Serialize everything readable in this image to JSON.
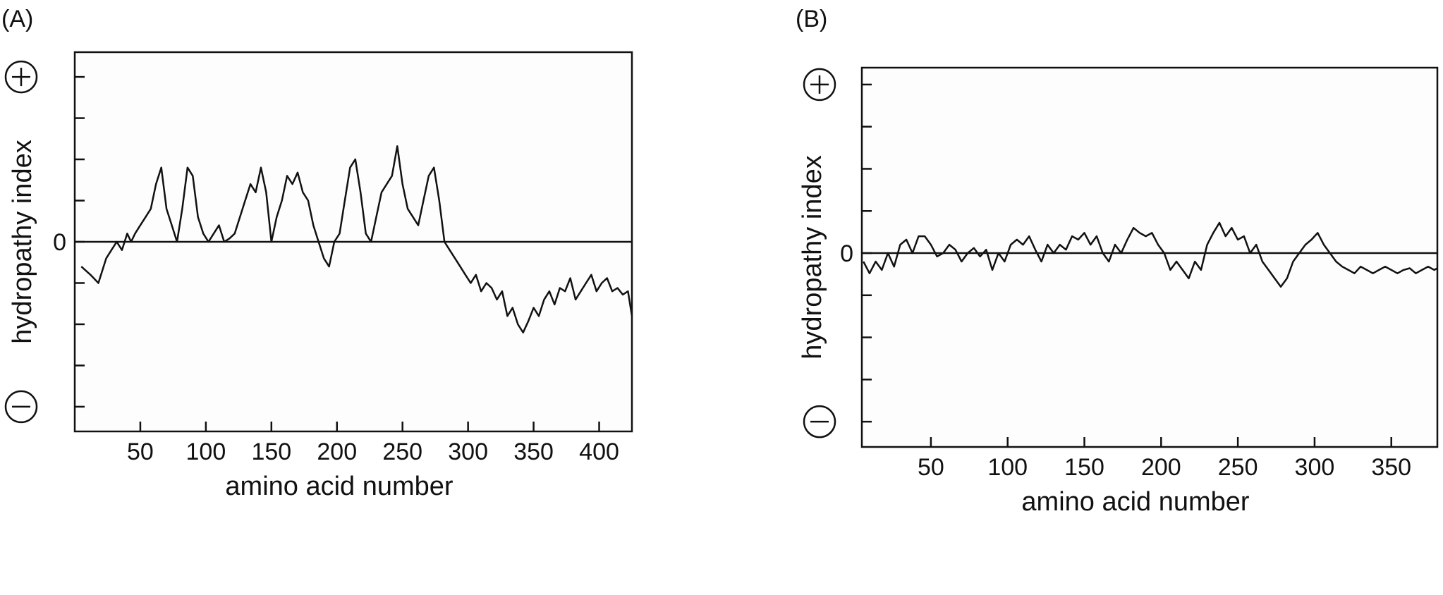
{
  "chart_data": [
    {
      "type": "line",
      "panel_label": "(A)",
      "xlabel": "amino acid number",
      "ylabel": "hydropathy index",
      "x_ticks": [
        50,
        100,
        150,
        200,
        250,
        300,
        350,
        400
      ],
      "xlim": [
        0,
        425
      ],
      "ylim": [
        -1.15,
        1.15
      ],
      "y_ticks": [
        -1.0,
        -0.75,
        -0.5,
        -0.25,
        0,
        0.25,
        0.5,
        0.75,
        1.0
      ],
      "y_tick_labels": [
        {
          "value": 0,
          "label": "0"
        }
      ],
      "y_sign_positive": "+",
      "y_sign_negative": "−",
      "grid": false,
      "series": [
        {
          "x": [
            5,
            12,
            18,
            24,
            28,
            32,
            36,
            40,
            43,
            46,
            50,
            54,
            58,
            62,
            66,
            70,
            74,
            78,
            82,
            86,
            90,
            94,
            98,
            102,
            106,
            110,
            114,
            118,
            122,
            126,
            130,
            134,
            138,
            142,
            146,
            150,
            154,
            158,
            162,
            166,
            170,
            174,
            178,
            182,
            186,
            190,
            194,
            198,
            202,
            206,
            210,
            214,
            218,
            222,
            226,
            230,
            234,
            238,
            242,
            246,
            250,
            254,
            258,
            262,
            266,
            270,
            274,
            278,
            282,
            286,
            290,
            294,
            298,
            302,
            306,
            310,
            314,
            318,
            322,
            326,
            330,
            334,
            338,
            342,
            346,
            350,
            354,
            358,
            362,
            366,
            370,
            374,
            378,
            382,
            386,
            390,
            394,
            398,
            402,
            406,
            410,
            414,
            418,
            422,
            425
          ],
          "values": [
            -0.15,
            -0.2,
            -0.25,
            -0.1,
            -0.05,
            0.0,
            -0.05,
            0.05,
            0.0,
            0.05,
            0.1,
            0.15,
            0.2,
            0.35,
            0.45,
            0.2,
            0.1,
            0.0,
            0.2,
            0.45,
            0.4,
            0.15,
            0.05,
            0.0,
            0.05,
            0.1,
            0.0,
            0.02,
            0.05,
            0.15,
            0.25,
            0.35,
            0.3,
            0.45,
            0.3,
            0.0,
            0.15,
            0.25,
            0.4,
            0.35,
            0.42,
            0.3,
            0.25,
            0.1,
            0.0,
            -0.1,
            -0.15,
            0.0,
            0.05,
            0.25,
            0.45,
            0.5,
            0.3,
            0.05,
            0.0,
            0.15,
            0.3,
            0.35,
            0.4,
            0.58,
            0.35,
            0.2,
            0.15,
            0.1,
            0.25,
            0.4,
            0.45,
            0.25,
            0.0,
            -0.05,
            -0.1,
            -0.15,
            -0.2,
            -0.25,
            -0.2,
            -0.3,
            -0.25,
            -0.28,
            -0.35,
            -0.3,
            -0.45,
            -0.4,
            -0.5,
            -0.55,
            -0.48,
            -0.4,
            -0.45,
            -0.35,
            -0.3,
            -0.38,
            -0.28,
            -0.3,
            -0.22,
            -0.35,
            -0.3,
            -0.25,
            -0.2,
            -0.3,
            -0.25,
            -0.22,
            -0.3,
            -0.28,
            -0.32,
            -0.3,
            -0.45
          ]
        }
      ]
    },
    {
      "type": "line",
      "panel_label": "(B)",
      "xlabel": "amino acid number",
      "ylabel": "hydropathy index",
      "x_ticks": [
        50,
        100,
        150,
        200,
        250,
        300,
        350
      ],
      "xlim": [
        5,
        380
      ],
      "ylim": [
        -1.15,
        1.1
      ],
      "y_ticks": [
        -1.0,
        -0.75,
        -0.5,
        -0.25,
        0,
        0.25,
        0.5,
        0.75,
        1.0
      ],
      "y_tick_labels": [
        {
          "value": 0,
          "label": "0"
        }
      ],
      "y_sign_positive": "+",
      "y_sign_negative": "−",
      "grid": false,
      "series": [
        {
          "x": [
            6,
            10,
            14,
            18,
            22,
            26,
            30,
            34,
            38,
            42,
            46,
            50,
            54,
            58,
            62,
            66,
            70,
            74,
            78,
            82,
            86,
            90,
            94,
            98,
            102,
            106,
            110,
            114,
            118,
            122,
            126,
            130,
            134,
            138,
            142,
            146,
            150,
            154,
            158,
            162,
            166,
            170,
            174,
            178,
            182,
            186,
            190,
            194,
            198,
            202,
            206,
            210,
            214,
            218,
            222,
            226,
            230,
            234,
            238,
            242,
            246,
            250,
            254,
            258,
            262,
            266,
            270,
            274,
            278,
            282,
            286,
            290,
            294,
            298,
            302,
            306,
            310,
            314,
            318,
            322,
            326,
            330,
            334,
            338,
            342,
            346,
            350,
            354,
            358,
            362,
            366,
            370,
            374,
            378,
            380
          ],
          "values": [
            -0.05,
            -0.12,
            -0.05,
            -0.1,
            0.0,
            -0.08,
            0.05,
            0.08,
            0.0,
            0.1,
            0.1,
            0.05,
            -0.02,
            0.0,
            0.05,
            0.02,
            -0.05,
            0.0,
            0.03,
            -0.02,
            0.02,
            -0.1,
            0.0,
            -0.05,
            0.05,
            0.08,
            0.05,
            0.1,
            0.02,
            -0.05,
            0.05,
            0.0,
            0.05,
            0.02,
            0.1,
            0.08,
            0.12,
            0.05,
            0.1,
            0.0,
            -0.05,
            0.05,
            0.0,
            0.08,
            0.15,
            0.12,
            0.1,
            0.12,
            0.05,
            0.0,
            -0.1,
            -0.05,
            -0.1,
            -0.15,
            -0.05,
            -0.1,
            0.05,
            0.12,
            0.18,
            0.1,
            0.15,
            0.08,
            0.1,
            0.0,
            0.05,
            -0.05,
            -0.1,
            -0.15,
            -0.2,
            -0.15,
            -0.05,
            0.0,
            0.05,
            0.08,
            0.12,
            0.05,
            0.0,
            -0.05,
            -0.08,
            -0.1,
            -0.12,
            -0.08,
            -0.1,
            -0.12,
            -0.1,
            -0.08,
            -0.1,
            -0.12,
            -0.1,
            -0.09,
            -0.12,
            -0.1,
            -0.08,
            -0.1,
            -0.09
          ]
        }
      ]
    }
  ]
}
